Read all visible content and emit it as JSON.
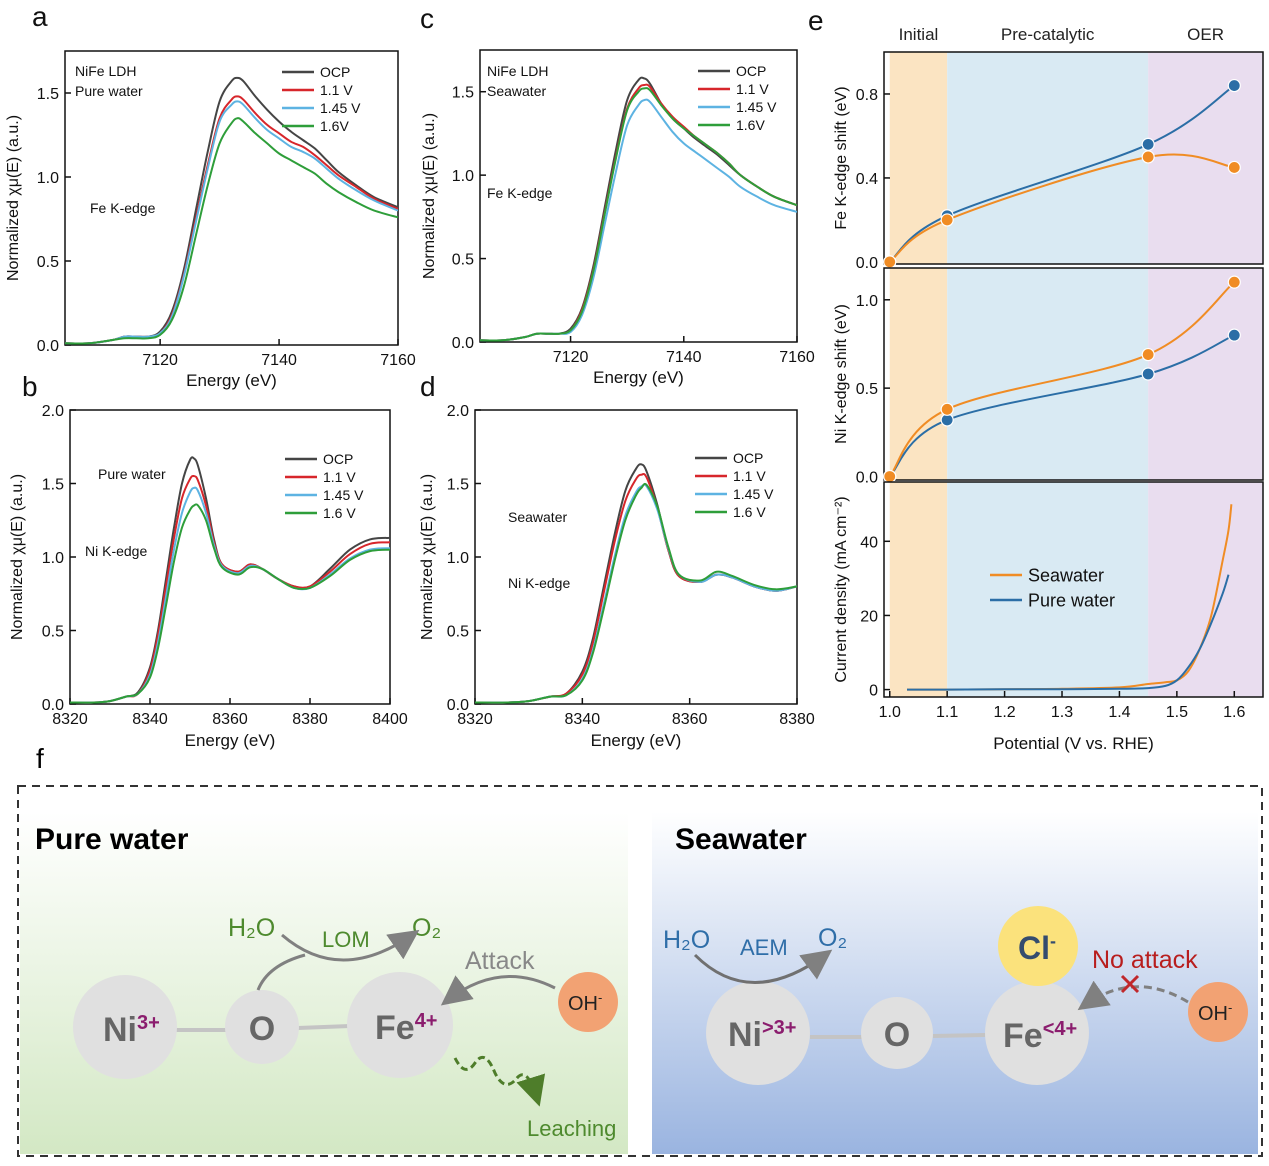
{
  "chart_data": [
    {
      "type": "line",
      "panel_label": "a",
      "xlabel": "Energy (eV)",
      "ylabel": "Normalized χμ(E) (a.u.)",
      "annotations": [
        "NiFe LDH",
        "Pure water",
        "Fe K-edge"
      ],
      "legend": "upper right",
      "xlim": [
        7104,
        7160
      ],
      "xticks": [
        7120,
        7140,
        7160
      ],
      "ylim": [
        0,
        1.75
      ],
      "yticks": [
        {
          "value": 0,
          "label": "0.0"
        },
        0.5,
        {
          "value": 1,
          "label": "1.0"
        },
        1.5
      ],
      "x": [
        7104,
        7108,
        7112,
        7114,
        7116,
        7118,
        7120,
        7122,
        7124,
        7126,
        7128,
        7130,
        7132,
        7133,
        7134,
        7136,
        7138,
        7140,
        7142,
        7144,
        7146,
        7148,
        7150,
        7153,
        7156,
        7160
      ],
      "series": [
        {
          "name": "OCP",
          "color": "#454545",
          "values": [
            0.01,
            0.01,
            0.03,
            0.05,
            0.05,
            0.05,
            0.08,
            0.2,
            0.45,
            0.8,
            1.15,
            1.45,
            1.57,
            1.59,
            1.57,
            1.48,
            1.4,
            1.33,
            1.27,
            1.22,
            1.17,
            1.1,
            1.03,
            0.95,
            0.88,
            0.82
          ]
        },
        {
          "name": "1.1 V",
          "color": "#d7262b",
          "values": [
            0.01,
            0.01,
            0.03,
            0.05,
            0.05,
            0.05,
            0.07,
            0.18,
            0.42,
            0.75,
            1.07,
            1.35,
            1.46,
            1.48,
            1.46,
            1.38,
            1.31,
            1.26,
            1.21,
            1.18,
            1.13,
            1.07,
            1.01,
            0.94,
            0.87,
            0.81
          ]
        },
        {
          "name": "1.45 V",
          "color": "#5db3e2",
          "values": [
            0.01,
            0.01,
            0.03,
            0.05,
            0.05,
            0.05,
            0.07,
            0.17,
            0.41,
            0.73,
            1.05,
            1.33,
            1.43,
            1.45,
            1.43,
            1.35,
            1.28,
            1.23,
            1.18,
            1.15,
            1.11,
            1.05,
            0.99,
            0.92,
            0.86,
            0.8
          ]
        },
        {
          "name": "1.6V",
          "color": "#2e9e3a",
          "values": [
            0.01,
            0.01,
            0.03,
            0.04,
            0.04,
            0.04,
            0.06,
            0.15,
            0.35,
            0.65,
            0.95,
            1.2,
            1.32,
            1.35,
            1.33,
            1.26,
            1.2,
            1.14,
            1.1,
            1.06,
            1.02,
            0.96,
            0.91,
            0.85,
            0.8,
            0.76
          ]
        }
      ]
    },
    {
      "type": "line",
      "panel_label": "b",
      "xlabel": "Energy (eV)",
      "ylabel": "Normalized χμ(E) (a.u.)",
      "annotations": [
        "Pure water",
        "Ni K-edge"
      ],
      "legend": "upper right",
      "xlim": [
        8320,
        8400
      ],
      "xticks": [
        8320,
        8340,
        8360,
        8380,
        8400
      ],
      "ylim": [
        0,
        2
      ],
      "yticks": [
        {
          "value": 0,
          "label": "0.0"
        },
        0.5,
        {
          "value": 1,
          "label": "1.0"
        },
        1.5,
        {
          "value": 2,
          "label": "2.0"
        }
      ],
      "x": [
        8320,
        8326,
        8330,
        8334,
        8337,
        8340,
        8342,
        8344,
        8346,
        8348,
        8350,
        8351,
        8352,
        8354,
        8356,
        8358,
        8362,
        8365,
        8368,
        8372,
        8376,
        8380,
        8385,
        8390,
        8395,
        8400
      ],
      "series": [
        {
          "name": "OCP",
          "color": "#454545",
          "values": [
            0.01,
            0.01,
            0.02,
            0.05,
            0.08,
            0.25,
            0.5,
            0.85,
            1.2,
            1.5,
            1.66,
            1.67,
            1.62,
            1.4,
            1.12,
            0.95,
            0.9,
            0.95,
            0.92,
            0.85,
            0.8,
            0.8,
            0.92,
            1.05,
            1.12,
            1.13
          ]
        },
        {
          "name": "1.1 V",
          "color": "#d7262b",
          "values": [
            0.01,
            0.01,
            0.02,
            0.05,
            0.07,
            0.23,
            0.47,
            0.8,
            1.13,
            1.4,
            1.53,
            1.55,
            1.52,
            1.35,
            1.1,
            0.95,
            0.9,
            0.95,
            0.92,
            0.85,
            0.8,
            0.8,
            0.9,
            1.02,
            1.09,
            1.1
          ]
        },
        {
          "name": "1.45 V",
          "color": "#5db3e2",
          "values": [
            0.01,
            0.01,
            0.02,
            0.05,
            0.07,
            0.2,
            0.42,
            0.73,
            1.05,
            1.3,
            1.44,
            1.47,
            1.45,
            1.3,
            1.08,
            0.94,
            0.89,
            0.94,
            0.92,
            0.85,
            0.79,
            0.79,
            0.88,
            0.99,
            1.05,
            1.06
          ]
        },
        {
          "name": "1.6 V",
          "color": "#2e9e3a",
          "values": [
            0.01,
            0.01,
            0.02,
            0.05,
            0.07,
            0.18,
            0.38,
            0.67,
            0.97,
            1.2,
            1.32,
            1.35,
            1.35,
            1.25,
            1.06,
            0.93,
            0.88,
            0.93,
            0.92,
            0.85,
            0.79,
            0.79,
            0.87,
            0.98,
            1.04,
            1.05
          ]
        }
      ]
    },
    {
      "type": "line",
      "panel_label": "c",
      "xlabel": "Energy (eV)",
      "ylabel": "Normalized χμ(E) (a.u.)",
      "annotations": [
        "NiFe LDH",
        "Seawater",
        "Fe K-edge"
      ],
      "legend": "upper right",
      "xlim": [
        7104,
        7160
      ],
      "xticks": [
        7120,
        7140,
        7160
      ],
      "ylim": [
        0,
        1.75
      ],
      "yticks": [
        {
          "value": 0,
          "label": "0.0"
        },
        0.5,
        {
          "value": 1,
          "label": "1.0"
        },
        1.5
      ],
      "x": [
        7104,
        7108,
        7112,
        7114,
        7116,
        7118,
        7120,
        7122,
        7124,
        7126,
        7128,
        7130,
        7132,
        7133,
        7134,
        7136,
        7138,
        7140,
        7142,
        7144,
        7146,
        7148,
        7150,
        7153,
        7156,
        7160
      ],
      "series": [
        {
          "name": "OCP",
          "color": "#454545",
          "values": [
            0.01,
            0.01,
            0.03,
            0.05,
            0.05,
            0.05,
            0.08,
            0.2,
            0.45,
            0.8,
            1.15,
            1.45,
            1.57,
            1.58,
            1.55,
            1.43,
            1.34,
            1.28,
            1.22,
            1.17,
            1.12,
            1.06,
            1.0,
            0.93,
            0.87,
            0.82
          ]
        },
        {
          "name": "1.1 V",
          "color": "#d7262b",
          "values": [
            0.01,
            0.01,
            0.03,
            0.05,
            0.05,
            0.05,
            0.07,
            0.19,
            0.43,
            0.77,
            1.11,
            1.4,
            1.52,
            1.54,
            1.53,
            1.43,
            1.35,
            1.29,
            1.23,
            1.18,
            1.13,
            1.07,
            1.0,
            0.93,
            0.87,
            0.82
          ]
        },
        {
          "name": "1.45 V",
          "color": "#5db3e2",
          "values": [
            0.01,
            0.01,
            0.03,
            0.05,
            0.05,
            0.05,
            0.06,
            0.16,
            0.38,
            0.7,
            1.02,
            1.3,
            1.42,
            1.45,
            1.44,
            1.35,
            1.26,
            1.19,
            1.14,
            1.09,
            1.04,
            0.99,
            0.93,
            0.87,
            0.82,
            0.78
          ]
        },
        {
          "name": "1.6V",
          "color": "#2e9e3a",
          "values": [
            0.01,
            0.01,
            0.03,
            0.05,
            0.05,
            0.05,
            0.07,
            0.18,
            0.42,
            0.76,
            1.1,
            1.39,
            1.5,
            1.52,
            1.51,
            1.42,
            1.34,
            1.28,
            1.23,
            1.18,
            1.13,
            1.07,
            1.0,
            0.93,
            0.87,
            0.82
          ]
        }
      ]
    },
    {
      "type": "line",
      "panel_label": "d",
      "xlabel": "Energy (eV)",
      "ylabel": "Normalized χμ(E) (a.u.)",
      "annotations": [
        "Seawater",
        "Ni K-edge"
      ],
      "legend": "upper right",
      "xlim": [
        8320,
        8380
      ],
      "xticks": [
        8320,
        8340,
        8360,
        8380
      ],
      "ylim": [
        0,
        2
      ],
      "yticks": [
        {
          "value": 0,
          "label": "0.0"
        },
        0.5,
        {
          "value": 1,
          "label": "1.0"
        },
        1.5,
        {
          "value": 2,
          "label": "2.0"
        }
      ],
      "x": [
        8320,
        8326,
        8330,
        8334,
        8337,
        8340,
        8342,
        8344,
        8346,
        8348,
        8350,
        8351,
        8352,
        8354,
        8356,
        8358,
        8362,
        8365,
        8368,
        8372,
        8376,
        8380
      ],
      "series": [
        {
          "name": "OCP",
          "color": "#454545",
          "values": [
            0.01,
            0.01,
            0.02,
            0.05,
            0.07,
            0.22,
            0.45,
            0.8,
            1.15,
            1.45,
            1.6,
            1.63,
            1.58,
            1.35,
            1.05,
            0.87,
            0.83,
            0.88,
            0.86,
            0.8,
            0.77,
            0.8
          ]
        },
        {
          "name": "1.1 V",
          "color": "#d7262b",
          "values": [
            0.01,
            0.01,
            0.02,
            0.05,
            0.07,
            0.2,
            0.42,
            0.76,
            1.1,
            1.38,
            1.53,
            1.56,
            1.54,
            1.33,
            1.05,
            0.87,
            0.83,
            0.88,
            0.86,
            0.8,
            0.77,
            0.8
          ]
        },
        {
          "name": "1.45 V",
          "color": "#5db3e2",
          "values": [
            0.01,
            0.01,
            0.02,
            0.05,
            0.06,
            0.17,
            0.37,
            0.68,
            1.0,
            1.28,
            1.44,
            1.48,
            1.48,
            1.32,
            1.06,
            0.88,
            0.83,
            0.88,
            0.86,
            0.8,
            0.77,
            0.8
          ]
        },
        {
          "name": "1.6 V",
          "color": "#2e9e3a",
          "values": [
            0.01,
            0.01,
            0.02,
            0.05,
            0.06,
            0.16,
            0.35,
            0.65,
            0.97,
            1.25,
            1.42,
            1.47,
            1.49,
            1.34,
            1.07,
            0.88,
            0.84,
            0.9,
            0.87,
            0.81,
            0.78,
            0.8
          ]
        }
      ]
    },
    {
      "type": "line",
      "panel_label": "e",
      "ylabel": "Fe K-edge shift (eV)",
      "marker": true,
      "regions": [
        {
          "name": "Initial",
          "from": 1.0,
          "to": 1.1,
          "color": "#fbe4c2"
        },
        {
          "name": "Pre-catalytic",
          "from": 1.1,
          "to": 1.45,
          "color": "#d9eaf3"
        },
        {
          "name": "OER",
          "from": 1.45,
          "to": 1.65,
          "color": "#e9ddef"
        }
      ],
      "xlim": [
        0.99,
        1.65
      ],
      "ylim": [
        -0.01,
        1.0
      ],
      "yticks": [
        {
          "value": 0,
          "label": "0.0"
        },
        0.4,
        0.8
      ],
      "series": [
        {
          "color": "#2b6ea6",
          "x": [
            1.0,
            1.1,
            1.45,
            1.6
          ],
          "values": [
            0,
            0.22,
            0.56,
            0.84
          ]
        },
        {
          "color": "#f08c24",
          "x": [
            1.0,
            1.1,
            1.45,
            1.6
          ],
          "values": [
            0,
            0.2,
            0.5,
            0.45
          ]
        }
      ]
    },
    {
      "type": "line",
      "ylabel": "Ni K-edge shift (eV)",
      "marker": true,
      "xlim": [
        0.99,
        1.65
      ],
      "ylim": [
        -0.02,
        1.18
      ],
      "yticks": [
        {
          "value": 0,
          "label": "0.0"
        },
        0.5,
        {
          "value": 1,
          "label": "1.0"
        }
      ],
      "series": [
        {
          "color": "#2b6ea6",
          "x": [
            1.0,
            1.1,
            1.45,
            1.6
          ],
          "values": [
            0,
            0.32,
            0.58,
            0.8
          ]
        },
        {
          "color": "#f08c24",
          "x": [
            1.0,
            1.1,
            1.45,
            1.6
          ],
          "values": [
            0,
            0.38,
            0.69,
            1.1
          ]
        }
      ]
    },
    {
      "type": "line",
      "xlabel": "Potential (V vs. RHE)",
      "ylabel": "Current density (mA cm⁻²)",
      "legend": "center",
      "xlim": [
        0.99,
        1.65
      ],
      "xticks": [
        {
          "value": 1,
          "label": "1.0"
        },
        1.1,
        1.2,
        1.3,
        1.4,
        1.5,
        1.6
      ],
      "ylim": [
        -2,
        56
      ],
      "yticks": [
        0,
        20,
        40
      ],
      "series": [
        {
          "name": "Seawater",
          "color": "#f08c24",
          "x": [
            1.03,
            1.1,
            1.2,
            1.3,
            1.4,
            1.45,
            1.48,
            1.5,
            1.52,
            1.54,
            1.56,
            1.58,
            1.59,
            1.595
          ],
          "values": [
            0,
            0,
            0.1,
            0.2,
            0.6,
            1.5,
            2,
            2.5,
            5,
            11,
            20,
            35,
            43,
            50
          ]
        },
        {
          "name": "Pure water",
          "color": "#2b6ea6",
          "x": [
            1.03,
            1.1,
            1.2,
            1.3,
            1.4,
            1.45,
            1.48,
            1.5,
            1.52,
            1.54,
            1.56,
            1.58,
            1.59
          ],
          "values": [
            0,
            0,
            0.1,
            0.1,
            0.2,
            0.4,
            1,
            2.5,
            6,
            11,
            18,
            26,
            31
          ]
        }
      ]
    }
  ],
  "diagram": {
    "panel_label": "f",
    "pure_water": {
      "title": "Pure water",
      "reactant": "H₂O",
      "mechanism": "LOM",
      "product": "O₂",
      "attack": "Attack",
      "leaching": "Leaching",
      "ni": {
        "element": "Ni",
        "charge": "3+"
      },
      "o": "O",
      "fe": {
        "element": "Fe",
        "charge": "4+"
      },
      "oh": {
        "element": "OH",
        "charge": "-"
      }
    },
    "seawater": {
      "title": "Seawater",
      "reactant": "H₂O",
      "mechanism": "AEM",
      "product": "O₂",
      "attack": "No attack",
      "ni": {
        "element": "Ni",
        "charge": ">3+"
      },
      "o": "O",
      "fe": {
        "element": "Fe",
        "charge": "<4+"
      },
      "cl": {
        "element": "Cl",
        "charge": "-"
      },
      "oh": {
        "element": "OH",
        "charge": "-"
      }
    }
  }
}
